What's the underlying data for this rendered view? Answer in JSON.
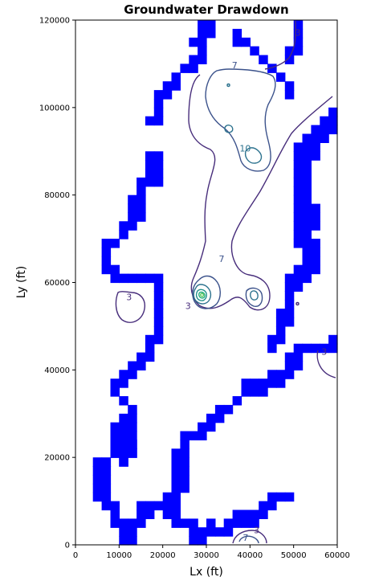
{
  "chart_data": {
    "type": "contour",
    "title": "Groundwater Drawdown",
    "xlabel": "Lx (ft)",
    "ylabel": "Ly (ft)",
    "xlim": [
      0,
      60000
    ],
    "ylim": [
      0,
      120000
    ],
    "xticks": [
      0,
      10000,
      20000,
      30000,
      40000,
      50000,
      60000
    ],
    "xtick_labels": [
      "0",
      "10000",
      "20000",
      "30000",
      "40000",
      "50000",
      "60000"
    ],
    "yticks": [
      0,
      20000,
      40000,
      60000,
      80000,
      100000,
      120000
    ],
    "ytick_labels": [
      "0",
      "20000",
      "40000",
      "60000",
      "80000",
      "100000",
      "120000"
    ],
    "grid": false,
    "boundary_color": "#0000ff",
    "levels": [
      {
        "value": 3,
        "color": "#472d7b"
      },
      {
        "value": 7,
        "color": "#3b528b"
      },
      {
        "value": 10,
        "color": "#2c728e"
      },
      {
        "value": 15,
        "color": "#21918c"
      },
      {
        "value": 20,
        "color": "#28ae80"
      },
      {
        "value": 25,
        "color": "#5ec962"
      }
    ],
    "contour_labels": [
      {
        "text": "3",
        "x": 12300,
        "y": 56500,
        "color": "#472d7b"
      },
      {
        "text": "3",
        "x": 25800,
        "y": 54500,
        "color": "#472d7b"
      },
      {
        "text": "3",
        "x": 51000,
        "y": 117000,
        "color": "#472d7b"
      },
      {
        "text": "3",
        "x": 57000,
        "y": 44000,
        "color": "#472d7b"
      },
      {
        "text": "3",
        "x": 41500,
        "y": 3200,
        "color": "#472d7b"
      },
      {
        "text": "7",
        "x": 36500,
        "y": 109500,
        "color": "#3b528b"
      },
      {
        "text": "7",
        "x": 33500,
        "y": 65200,
        "color": "#3b528b"
      },
      {
        "text": "7",
        "x": 39000,
        "y": 1500,
        "color": "#3b528b"
      },
      {
        "text": "10",
        "x": 38900,
        "y": 90500,
        "color": "#2c728e"
      }
    ],
    "boundary_cells_width": 2000,
    "boundary_cells": [
      [
        4000,
        18000
      ],
      [
        4000,
        16000
      ],
      [
        4000,
        14000
      ],
      [
        4000,
        12000
      ],
      [
        4000,
        10000
      ],
      [
        6000,
        18000
      ],
      [
        6000,
        16000
      ],
      [
        6000,
        14000
      ],
      [
        6000,
        12000
      ],
      [
        6000,
        10000
      ],
      [
        6000,
        8000
      ],
      [
        8000,
        20000
      ],
      [
        8000,
        8000
      ],
      [
        8000,
        6000
      ],
      [
        8000,
        4000
      ],
      [
        10000,
        20000
      ],
      [
        10000,
        18000
      ],
      [
        10000,
        4000
      ],
      [
        10000,
        2000
      ],
      [
        10000,
        0
      ],
      [
        12000,
        22000
      ],
      [
        12000,
        20000
      ],
      [
        12000,
        4000
      ],
      [
        12000,
        2000
      ],
      [
        12000,
        0
      ],
      [
        14000,
        8000
      ],
      [
        14000,
        6000
      ],
      [
        14000,
        4000
      ],
      [
        16000,
        8000
      ],
      [
        16000,
        6000
      ],
      [
        18000,
        8000
      ],
      [
        20000,
        10000
      ],
      [
        20000,
        8000
      ],
      [
        20000,
        6000
      ],
      [
        22000,
        10000
      ],
      [
        22000,
        8000
      ],
      [
        22000,
        6000
      ],
      [
        22000,
        4000
      ],
      [
        24000,
        4000
      ],
      [
        26000,
        4000
      ],
      [
        26000,
        2000
      ],
      [
        26000,
        0
      ],
      [
        28000,
        2000
      ],
      [
        28000,
        0
      ],
      [
        30000,
        4000
      ],
      [
        30000,
        2000
      ],
      [
        32000,
        2000
      ],
      [
        34000,
        4000
      ],
      [
        34000,
        2000
      ],
      [
        36000,
        6000
      ],
      [
        36000,
        4000
      ],
      [
        38000,
        6000
      ],
      [
        38000,
        4000
      ],
      [
        40000,
        6000
      ],
      [
        40000,
        4000
      ],
      [
        42000,
        8000
      ],
      [
        42000,
        6000
      ],
      [
        44000,
        10000
      ],
      [
        44000,
        8000
      ],
      [
        46000,
        10000
      ],
      [
        48000,
        10000
      ],
      [
        8000,
        26000
      ],
      [
        8000,
        24000
      ],
      [
        8000,
        22000
      ],
      [
        8000,
        20000
      ],
      [
        10000,
        28000
      ],
      [
        10000,
        26000
      ],
      [
        10000,
        24000
      ],
      [
        10000,
        22000
      ],
      [
        10000,
        20000
      ],
      [
        10000,
        18000
      ],
      [
        12000,
        30000
      ],
      [
        12000,
        28000
      ],
      [
        12000,
        26000
      ],
      [
        12000,
        24000
      ],
      [
        12000,
        22000
      ],
      [
        12000,
        20000
      ],
      [
        10000,
        32000
      ],
      [
        8000,
        34000
      ],
      [
        8000,
        36000
      ],
      [
        10000,
        36000
      ],
      [
        10000,
        38000
      ],
      [
        12000,
        38000
      ],
      [
        12000,
        40000
      ],
      [
        14000,
        40000
      ],
      [
        14000,
        42000
      ],
      [
        16000,
        42000
      ],
      [
        16000,
        44000
      ],
      [
        16000,
        46000
      ],
      [
        18000,
        46000
      ],
      [
        18000,
        48000
      ],
      [
        18000,
        50000
      ],
      [
        18000,
        52000
      ],
      [
        18000,
        54000
      ],
      [
        18000,
        56000
      ],
      [
        18000,
        58000
      ],
      [
        18000,
        60000
      ],
      [
        16000,
        60000
      ],
      [
        14000,
        60000
      ],
      [
        12000,
        60000
      ],
      [
        10000,
        60000
      ],
      [
        8000,
        60000
      ],
      [
        8000,
        62000
      ],
      [
        6000,
        62000
      ],
      [
        6000,
        64000
      ],
      [
        6000,
        66000
      ],
      [
        6000,
        68000
      ],
      [
        8000,
        68000
      ],
      [
        10000,
        70000
      ],
      [
        10000,
        72000
      ],
      [
        12000,
        72000
      ],
      [
        12000,
        74000
      ],
      [
        12000,
        76000
      ],
      [
        12000,
        78000
      ],
      [
        14000,
        74000
      ],
      [
        14000,
        76000
      ],
      [
        14000,
        78000
      ],
      [
        14000,
        80000
      ],
      [
        14000,
        82000
      ],
      [
        16000,
        82000
      ],
      [
        16000,
        84000
      ],
      [
        16000,
        86000
      ],
      [
        18000,
        82000
      ],
      [
        18000,
        84000
      ],
      [
        18000,
        86000
      ],
      [
        16000,
        88000
      ],
      [
        18000,
        88000
      ],
      [
        16000,
        96000
      ],
      [
        18000,
        96000
      ],
      [
        18000,
        98000
      ],
      [
        18000,
        100000
      ],
      [
        18000,
        102000
      ],
      [
        20000,
        102000
      ],
      [
        20000,
        104000
      ],
      [
        22000,
        104000
      ],
      [
        22000,
        106000
      ],
      [
        24000,
        108000
      ],
      [
        26000,
        108000
      ],
      [
        26000,
        110000
      ],
      [
        28000,
        110000
      ],
      [
        28000,
        112000
      ],
      [
        28000,
        114000
      ],
      [
        28000,
        116000
      ],
      [
        26000,
        114000
      ],
      [
        28000,
        118000
      ],
      [
        30000,
        118000
      ],
      [
        30000,
        116000
      ],
      [
        36000,
        114000
      ],
      [
        36000,
        116000
      ],
      [
        38000,
        114000
      ],
      [
        40000,
        112000
      ],
      [
        42000,
        110000
      ],
      [
        44000,
        108000
      ],
      [
        46000,
        106000
      ],
      [
        48000,
        104000
      ],
      [
        48000,
        102000
      ],
      [
        48000,
        110000
      ],
      [
        50000,
        112000
      ],
      [
        50000,
        114000
      ],
      [
        50000,
        116000
      ],
      [
        50000,
        118000
      ],
      [
        48000,
        112000
      ],
      [
        22000,
        12000
      ],
      [
        22000,
        14000
      ],
      [
        22000,
        16000
      ],
      [
        22000,
        18000
      ],
      [
        22000,
        20000
      ],
      [
        24000,
        12000
      ],
      [
        24000,
        14000
      ],
      [
        24000,
        16000
      ],
      [
        24000,
        18000
      ],
      [
        24000,
        20000
      ],
      [
        24000,
        22000
      ],
      [
        24000,
        24000
      ],
      [
        26000,
        24000
      ],
      [
        28000,
        24000
      ],
      [
        28000,
        26000
      ],
      [
        30000,
        26000
      ],
      [
        30000,
        28000
      ],
      [
        32000,
        28000
      ],
      [
        32000,
        30000
      ],
      [
        34000,
        30000
      ],
      [
        36000,
        32000
      ],
      [
        38000,
        34000
      ],
      [
        38000,
        36000
      ],
      [
        40000,
        34000
      ],
      [
        40000,
        36000
      ],
      [
        42000,
        34000
      ],
      [
        42000,
        36000
      ],
      [
        44000,
        36000
      ],
      [
        44000,
        38000
      ],
      [
        46000,
        36000
      ],
      [
        46000,
        38000
      ],
      [
        48000,
        38000
      ],
      [
        48000,
        40000
      ],
      [
        48000,
        42000
      ],
      [
        50000,
        40000
      ],
      [
        50000,
        42000
      ],
      [
        50000,
        44000
      ],
      [
        52000,
        44000
      ],
      [
        54000,
        44000
      ],
      [
        56000,
        44000
      ],
      [
        58000,
        44000
      ],
      [
        58000,
        46000
      ],
      [
        44000,
        44000
      ],
      [
        44000,
        46000
      ],
      [
        46000,
        46000
      ],
      [
        46000,
        48000
      ],
      [
        46000,
        50000
      ],
      [
        46000,
        52000
      ],
      [
        48000,
        50000
      ],
      [
        48000,
        52000
      ],
      [
        48000,
        54000
      ],
      [
        48000,
        56000
      ],
      [
        48000,
        58000
      ],
      [
        48000,
        60000
      ],
      [
        50000,
        58000
      ],
      [
        50000,
        60000
      ],
      [
        50000,
        62000
      ],
      [
        52000,
        60000
      ],
      [
        52000,
        62000
      ],
      [
        52000,
        64000
      ],
      [
        52000,
        66000
      ],
      [
        54000,
        62000
      ],
      [
        54000,
        64000
      ],
      [
        54000,
        66000
      ],
      [
        54000,
        68000
      ],
      [
        52000,
        68000
      ],
      [
        50000,
        68000
      ],
      [
        50000,
        70000
      ],
      [
        50000,
        72000
      ],
      [
        50000,
        74000
      ],
      [
        50000,
        76000
      ],
      [
        50000,
        78000
      ],
      [
        50000,
        80000
      ],
      [
        50000,
        82000
      ],
      [
        50000,
        84000
      ],
      [
        52000,
        84000
      ],
      [
        52000,
        86000
      ],
      [
        52000,
        88000
      ],
      [
        52000,
        90000
      ],
      [
        52000,
        92000
      ],
      [
        52000,
        82000
      ],
      [
        52000,
        80000
      ],
      [
        52000,
        78000
      ],
      [
        52000,
        76000
      ],
      [
        52000,
        74000
      ],
      [
        52000,
        72000
      ],
      [
        52000,
        70000
      ],
      [
        54000,
        72000
      ],
      [
        54000,
        74000
      ],
      [
        54000,
        76000
      ],
      [
        54000,
        88000
      ],
      [
        54000,
        90000
      ],
      [
        54000,
        92000
      ],
      [
        54000,
        94000
      ],
      [
        56000,
        92000
      ],
      [
        56000,
        94000
      ],
      [
        56000,
        96000
      ],
      [
        58000,
        94000
      ],
      [
        58000,
        96000
      ],
      [
        58000,
        98000
      ],
      [
        50000,
        86000
      ],
      [
        50000,
        88000
      ],
      [
        50000,
        90000
      ]
    ]
  }
}
